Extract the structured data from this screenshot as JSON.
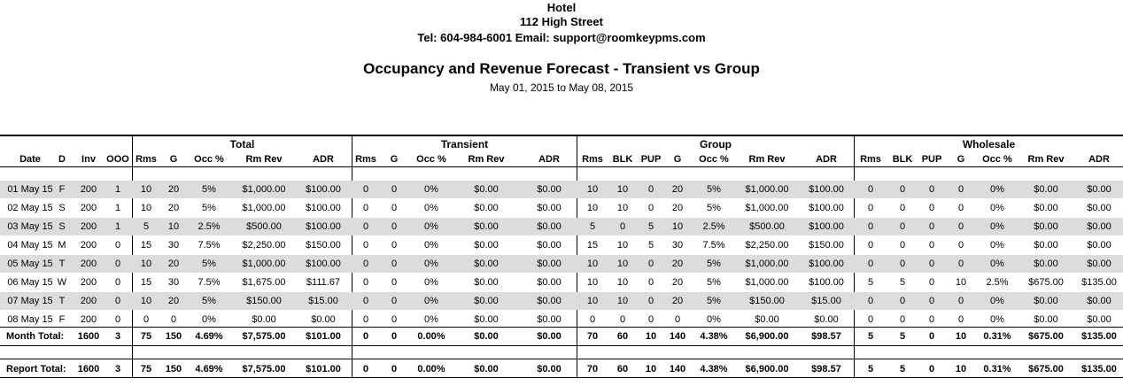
{
  "header": {
    "hotel": "Hotel",
    "street": "112 High Street",
    "contact": "Tel: 604-984-6001 Email: support@roomkeypms.com",
    "title": "Occupancy and Revenue Forecast - Transient vs Group",
    "date_range": "May 01, 2015 to May 08, 2015"
  },
  "groups": [
    "Total",
    "Transient",
    "Group",
    "Wholesale"
  ],
  "columns": [
    "Date",
    "D",
    "Inv",
    "OOO",
    "Rms",
    "G",
    "Occ %",
    "Rm Rev",
    "ADR",
    "Rms",
    "G",
    "Occ %",
    "Rm Rev",
    "ADR",
    "Rms",
    "BLK",
    "PUP",
    "G",
    "Occ %",
    "Rm Rev",
    "ADR",
    "Rms",
    "BLK",
    "PUP",
    "G",
    "Occ %",
    "Rm Rev",
    "ADR"
  ],
  "rows": [
    [
      "01 May 15",
      "F",
      "200",
      "1",
      "10",
      "20",
      "5%",
      "$1,000.00",
      "$100.00",
      "0",
      "0",
      "0%",
      "$0.00",
      "$0.00",
      "10",
      "10",
      "0",
      "20",
      "5%",
      "$1,000.00",
      "$100.00",
      "0",
      "0",
      "0",
      "0",
      "0%",
      "$0.00",
      "$0.00"
    ],
    [
      "02 May 15",
      "S",
      "200",
      "1",
      "10",
      "20",
      "5%",
      "$1,000.00",
      "$100.00",
      "0",
      "0",
      "0%",
      "$0.00",
      "$0.00",
      "10",
      "10",
      "0",
      "20",
      "5%",
      "$1,000.00",
      "$100.00",
      "0",
      "0",
      "0",
      "0",
      "0%",
      "$0.00",
      "$0.00"
    ],
    [
      "03 May 15",
      "S",
      "200",
      "1",
      "5",
      "10",
      "2.5%",
      "$500.00",
      "$100.00",
      "0",
      "0",
      "0%",
      "$0.00",
      "$0.00",
      "5",
      "0",
      "5",
      "10",
      "2.5%",
      "$500.00",
      "$100.00",
      "0",
      "0",
      "0",
      "0",
      "0%",
      "$0.00",
      "$0.00"
    ],
    [
      "04 May 15",
      "M",
      "200",
      "0",
      "15",
      "30",
      "7.5%",
      "$2,250.00",
      "$150.00",
      "0",
      "0",
      "0%",
      "$0.00",
      "$0.00",
      "15",
      "10",
      "5",
      "30",
      "7.5%",
      "$2,250.00",
      "$150.00",
      "0",
      "0",
      "0",
      "0",
      "0%",
      "$0.00",
      "$0.00"
    ],
    [
      "05 May 15",
      "T",
      "200",
      "0",
      "10",
      "20",
      "5%",
      "$1,000.00",
      "$100.00",
      "0",
      "0",
      "0%",
      "$0.00",
      "$0.00",
      "10",
      "10",
      "0",
      "20",
      "5%",
      "$1,000.00",
      "$100.00",
      "0",
      "0",
      "0",
      "0",
      "0%",
      "$0.00",
      "$0.00"
    ],
    [
      "06 May 15",
      "W",
      "200",
      "0",
      "15",
      "30",
      "7.5%",
      "$1,675.00",
      "$111.67",
      "0",
      "0",
      "0%",
      "$0.00",
      "$0.00",
      "10",
      "10",
      "0",
      "20",
      "5%",
      "$1,000.00",
      "$100.00",
      "5",
      "5",
      "0",
      "10",
      "2.5%",
      "$675.00",
      "$135.00"
    ],
    [
      "07 May 15",
      "T",
      "200",
      "0",
      "10",
      "20",
      "5%",
      "$150.00",
      "$15.00",
      "0",
      "0",
      "0%",
      "$0.00",
      "$0.00",
      "10",
      "10",
      "0",
      "20",
      "5%",
      "$150.00",
      "$15.00",
      "0",
      "0",
      "0",
      "0",
      "0%",
      "$0.00",
      "$0.00"
    ],
    [
      "08 May 15",
      "F",
      "200",
      "0",
      "0",
      "0",
      "0%",
      "$0.00",
      "$0.00",
      "0",
      "0",
      "0%",
      "$0.00",
      "$0.00",
      "0",
      "0",
      "0",
      "0",
      "0%",
      "$0.00",
      "$0.00",
      "0",
      "0",
      "0",
      "0",
      "0%",
      "$0.00",
      "$0.00"
    ]
  ],
  "month_total": [
    "Month Total:",
    "1600",
    "3",
    "75",
    "150",
    "4.69%",
    "$7,575.00",
    "$101.00",
    "0",
    "0",
    "0.00%",
    "$0.00",
    "$0.00",
    "70",
    "60",
    "10",
    "140",
    "4.38%",
    "$6,900.00",
    "$98.57",
    "5",
    "5",
    "0",
    "10",
    "0.31%",
    "$675.00",
    "$135.00"
  ],
  "report_total": [
    "Report Total:",
    "1600",
    "3",
    "75",
    "150",
    "4.69%",
    "$7,575.00",
    "$101.00",
    "0",
    "0",
    "0.00%",
    "$0.00",
    "$0.00",
    "70",
    "60",
    "10",
    "140",
    "4.38%",
    "$6,900.00",
    "$98.57",
    "5",
    "5",
    "0",
    "10",
    "0.31%",
    "$675.00",
    "$135.00"
  ]
}
